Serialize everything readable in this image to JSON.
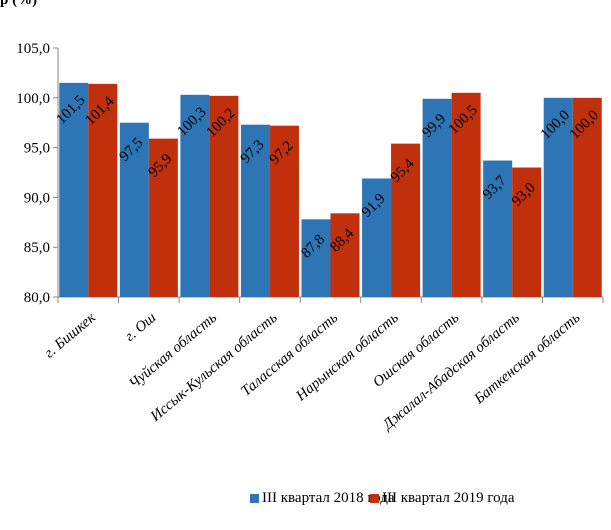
{
  "header_fragment": "р       (%)",
  "chart_data": {
    "type": "bar",
    "categories": [
      "г. Бишкек",
      "г. Ош",
      "Чуйская область",
      "Иссык-Кульская область",
      "Таласская область",
      "Нарынская область",
      "Ошская область",
      "Джалал-Абадская область",
      "Баткенская область"
    ],
    "series": [
      {
        "name": "III квартал 2018 года",
        "color": "#2e75b6",
        "values": [
          101.5,
          97.5,
          100.3,
          97.3,
          87.8,
          91.9,
          99.9,
          93.7,
          100.0
        ],
        "labels": [
          "101,5",
          "97,5",
          "100,3",
          "97,3",
          "87,8",
          "91,9",
          "99,9",
          "93,7",
          "100,0"
        ]
      },
      {
        "name": "III квартал 2019 года",
        "color": "#c0300d",
        "values": [
          101.4,
          95.9,
          100.2,
          97.2,
          88.4,
          95.4,
          100.5,
          93.0,
          100.0
        ],
        "labels": [
          "101,4",
          "95,9",
          "100,2",
          "97,2",
          "88,4",
          "95,4",
          "100,5",
          "93,0",
          "100,0"
        ]
      }
    ],
    "ylim": [
      80,
      105
    ],
    "yticks": [
      "80,0",
      "85,0",
      "90,0",
      "95,0",
      "100,0",
      "105,0"
    ],
    "legend": "bottom",
    "grid": false
  }
}
